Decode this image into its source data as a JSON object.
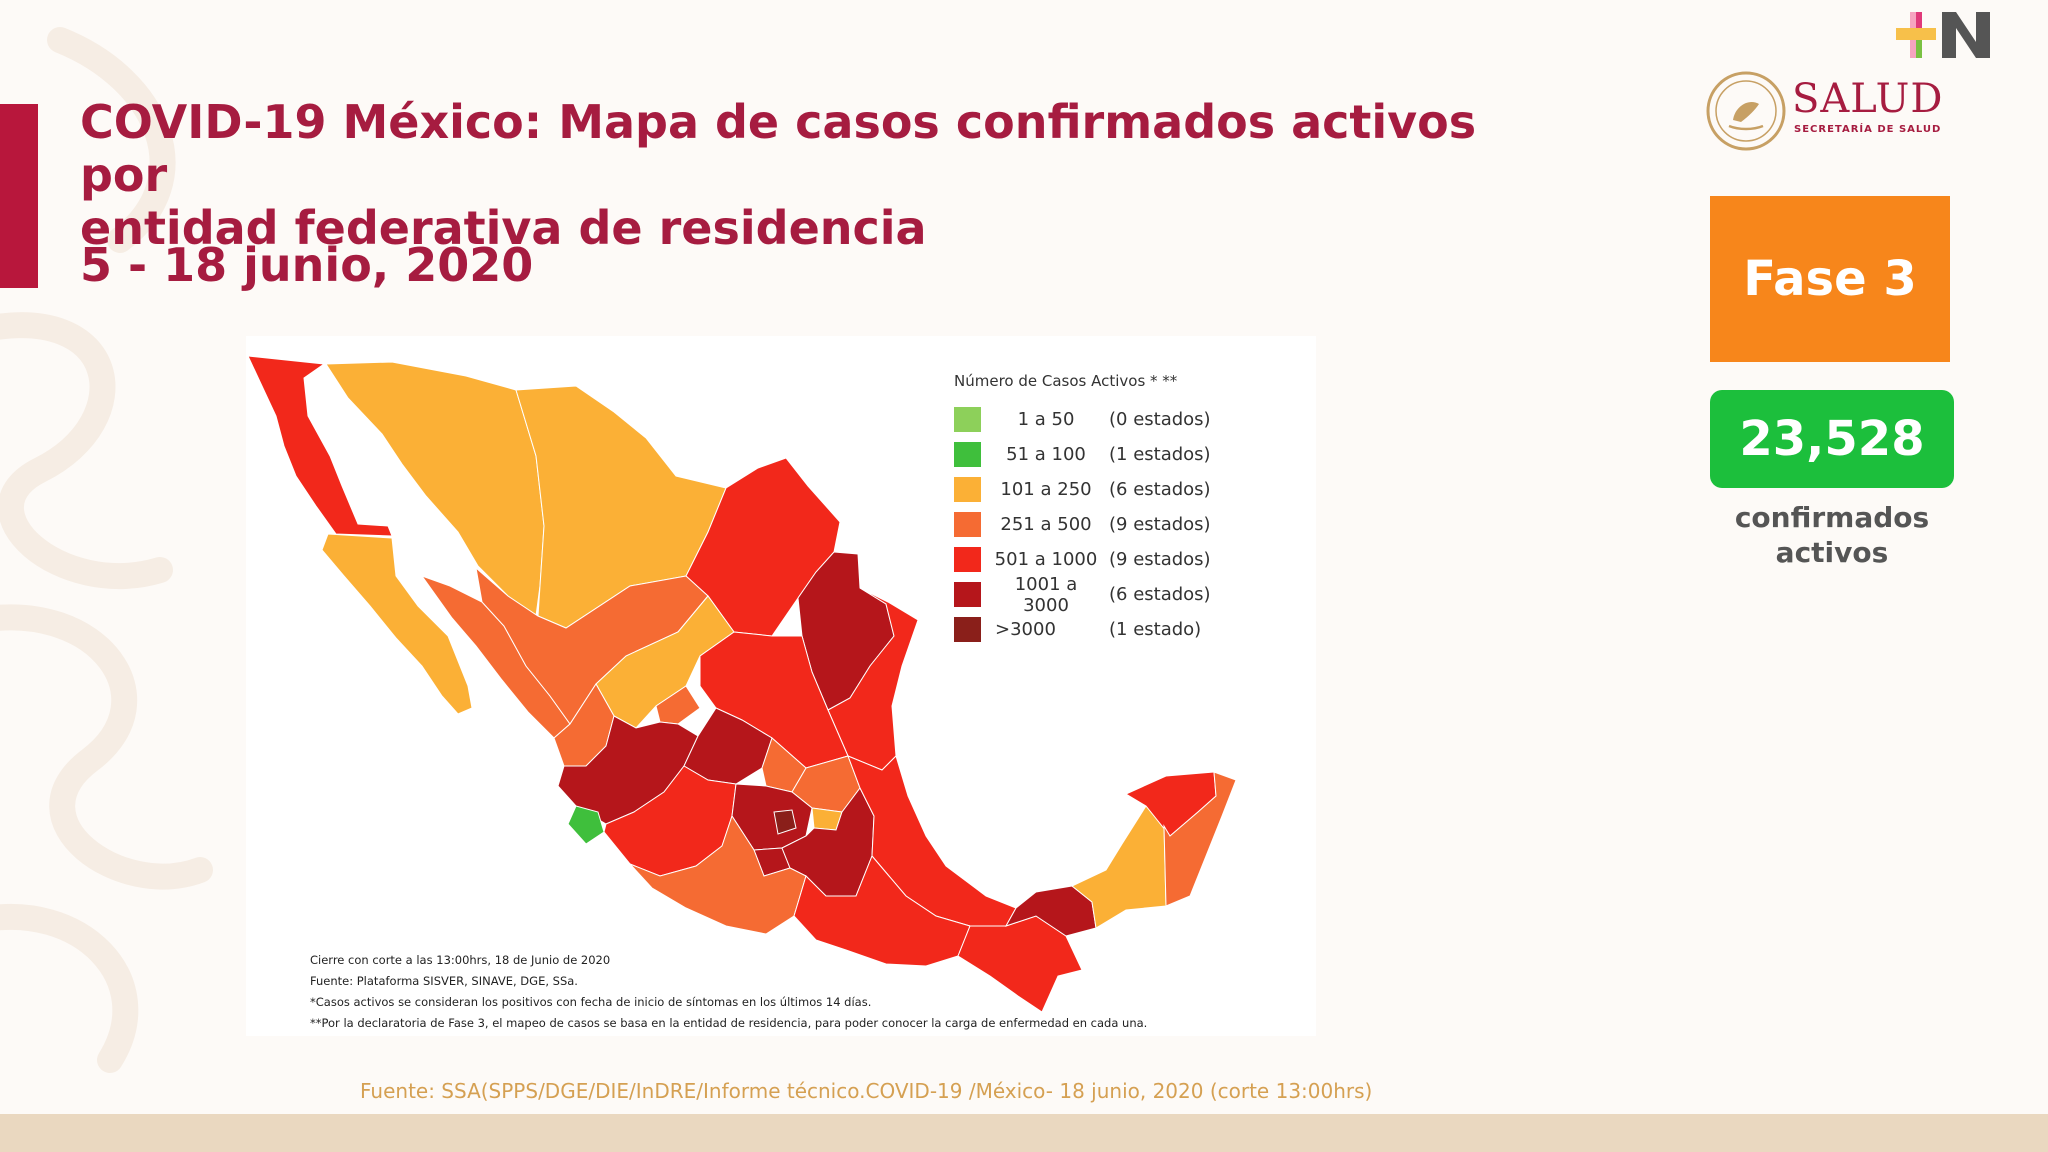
{
  "header": {
    "title_line1": "COVID-19 México: Mapa de casos confirmados activos por",
    "title_line2": "entidad federativa de residencia",
    "date_range": "5 - 18 junio, 2020"
  },
  "branding": {
    "ministry_name": "SALUD",
    "ministry_subtitle": "SECRETARÍA DE SALUD",
    "accent_color": "#a61c40"
  },
  "side_panel": {
    "phase_label": "Fase 3",
    "phase_color": "#f7861b",
    "active_count": "23,528",
    "count_color": "#1cbf3c",
    "count_caption_line1": "confirmados",
    "count_caption_line2": "activos"
  },
  "legend": {
    "title": "Número de Casos Activos * **",
    "items": [
      {
        "range": "1 a 50",
        "states": "(0 estados)",
        "color": "#8dd05a"
      },
      {
        "range": "51 a 100",
        "states": "(1 estados)",
        "color": "#3fbf3c"
      },
      {
        "range": "101 a 250",
        "states": "(6 estados)",
        "color": "#fbb036"
      },
      {
        "range": "251 a 500",
        "states": "(9 estados)",
        "color": "#f56b33"
      },
      {
        "range": "501 a 1000",
        "states": "(9 estados)",
        "color": "#f2281b"
      },
      {
        "range": "1001 a 3000",
        "states": "(6 estados)",
        "color": "#b5161b"
      },
      {
        "range": ">3000",
        "states": "(1 estado)",
        "color": "#8a1f1a"
      }
    ]
  },
  "map_notes": [
    "Cierre con corte a las 13:00hrs, 18 de Junio de 2020",
    "Fuente: Plataforma SISVER, SINAVE, DGE, SSa.",
    "*Casos activos se consideran los positivos con fecha de inicio de síntomas en los últimos 14 días.",
    "**Por la declaratoria de Fase 3, el mapeo de casos se basa en la entidad de residencia, para poder conocer la carga de enfermedad en cada una."
  ],
  "footer_source": "Fuente: SSA(SPPS/DGE/DIE/InDRE/Informe técnico.COVID-19 /México- 18 junio, 2020 (corte 13:00hrs)"
}
